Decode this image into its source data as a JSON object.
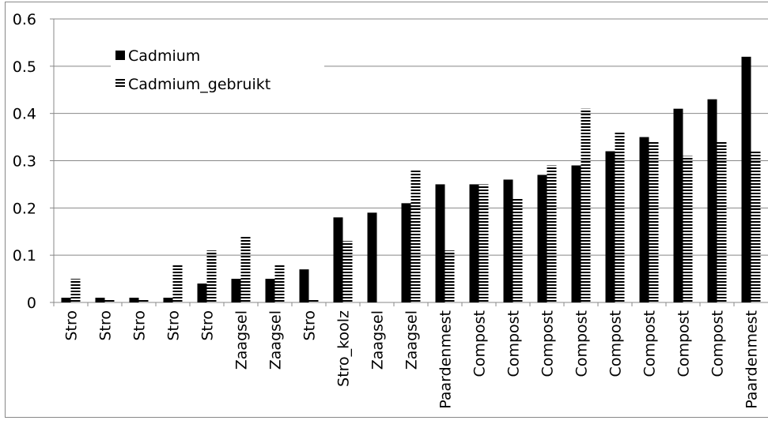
{
  "chart_data": {
    "type": "bar",
    "categories": [
      "Stro",
      "Stro",
      "Stro",
      "Stro",
      "Stro",
      "Zaagsel",
      "Zaagsel",
      "Stro",
      "Stro_koolz",
      "Zaagsel",
      "Zaagsel",
      "Paardenmest",
      "Compost",
      "Compost",
      "Compost",
      "Compost",
      "Compost",
      "Compost",
      "Compost",
      "Compost",
      "Paardenmest"
    ],
    "series": [
      {
        "name": "Cadmium",
        "color": "#000000",
        "pattern": "solid",
        "values": [
          0.01,
          0.01,
          0.01,
          0.01,
          0.04,
          0.05,
          0.05,
          0.07,
          0.18,
          0.19,
          0.21,
          0.25,
          0.25,
          0.26,
          0.27,
          0.29,
          0.32,
          0.35,
          0.41,
          0.43,
          0.52
        ]
      },
      {
        "name": "Cadmium_gebruikt",
        "color": "#000000",
        "pattern": "horizontal-stripes",
        "values": [
          0.05,
          0.008,
          0.007,
          0.08,
          0.11,
          0.14,
          0.08,
          0.007,
          0.13,
          0,
          0.28,
          0.11,
          0.25,
          0.22,
          0.29,
          0.41,
          0.36,
          0.34,
          0.31,
          0.34,
          0.32
        ]
      }
    ],
    "ylim": [
      0,
      0.6
    ],
    "yticks": [
      0,
      0.1,
      0.2,
      0.3,
      0.4,
      0.5,
      0.6
    ],
    "grid": true,
    "legend": "upper-left"
  }
}
